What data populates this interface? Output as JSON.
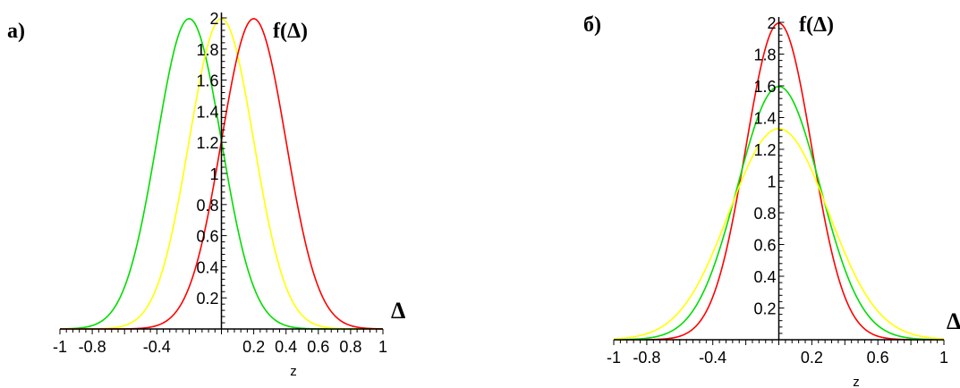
{
  "chart_data": [
    {
      "type": "line",
      "panel_label": "а)",
      "function_label": "f(Δ)",
      "axis_label": "Δ",
      "xlabel": "z",
      "xlim": [
        -1,
        1
      ],
      "ylim": [
        0,
        2
      ],
      "grid": false,
      "x_ticks": [
        -1,
        -0.8,
        -0.4,
        0.2,
        0.4,
        0.6,
        0.8,
        1
      ],
      "x_tick_labels": [
        "-1",
        "-0.8",
        "-0.4",
        "0.2",
        "0.4",
        "0.6",
        "0.8",
        "1"
      ],
      "y_ticks": [
        0.2,
        0.4,
        0.6,
        0.8,
        1,
        1.2,
        1.4,
        1.6,
        1.8,
        2
      ],
      "y_tick_labels": [
        "0.2",
        "0.4",
        "0.6",
        "0.8",
        "1",
        "1.2",
        "1.4",
        "1.6",
        "1.8",
        "2"
      ],
      "series": [
        {
          "color": "#00dd00",
          "mean": -0.2,
          "sigma": 0.2
        },
        {
          "color": "#ffff00",
          "mean": 0,
          "sigma": 0.2
        },
        {
          "color": "#ff0000",
          "mean": 0.2,
          "sigma": 0.2
        }
      ]
    },
    {
      "type": "line",
      "panel_label": "б)",
      "function_label": "f(Δ)",
      "axis_label": "Δ",
      "xlabel": "z",
      "xlim": [
        -1,
        1
      ],
      "ylim": [
        0,
        2
      ],
      "grid": false,
      "x_ticks": [
        -1,
        -0.8,
        -0.4,
        0.2,
        0.6,
        1
      ],
      "x_tick_labels": [
        "-1",
        "-0.8",
        "-0.4",
        "0.2",
        "0.6",
        "1"
      ],
      "y_ticks": [
        0.2,
        0.4,
        0.6,
        0.8,
        1,
        1.2,
        1.4,
        1.6,
        1.8,
        2
      ],
      "y_tick_labels": [
        "0.2",
        "0.4",
        "0.6",
        "0.8",
        "1",
        "1.2",
        "1.4",
        "1.6",
        "1.8",
        "2"
      ],
      "series": [
        {
          "color": "#ff0000",
          "mean": 0,
          "sigma": 0.2
        },
        {
          "color": "#00dd00",
          "mean": 0,
          "sigma": 0.25
        },
        {
          "color": "#ffff00",
          "mean": 0,
          "sigma": 0.3
        }
      ]
    }
  ]
}
